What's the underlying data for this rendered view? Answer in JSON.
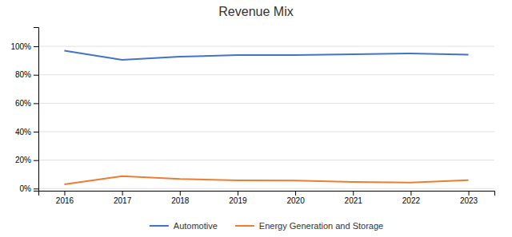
{
  "chart_data": {
    "type": "line",
    "title": "Revenue Mix",
    "x": [
      2016,
      2017,
      2018,
      2019,
      2020,
      2021,
      2022,
      2023
    ],
    "series": [
      {
        "name": "Automotive",
        "color": "#4472C4",
        "values": [
          0.97,
          0.905,
          0.927,
          0.938,
          0.939,
          0.944,
          0.95,
          0.942
        ]
      },
      {
        "name": "Energy Generation and Storage",
        "color": "#ED7D31",
        "values": [
          0.03,
          0.088,
          0.068,
          0.058,
          0.056,
          0.047,
          0.042,
          0.06
        ]
      }
    ],
    "xlim": [
      2015.55,
      2023.45
    ],
    "xticks": [
      2016,
      2017,
      2018,
      2019,
      2020,
      2021,
      2022,
      2023
    ],
    "ylim": [
      -0.015,
      1.135
    ],
    "yticks": [
      {
        "value": 0.0,
        "label": "0%"
      },
      {
        "value": 0.2,
        "label": "20%"
      },
      {
        "value": 0.4,
        "label": "40%"
      },
      {
        "value": 0.6,
        "label": "60%"
      },
      {
        "value": 0.8,
        "label": "80%"
      },
      {
        "value": 1.0,
        "label": "100%"
      }
    ],
    "grid": true,
    "legend": "bottom"
  }
}
